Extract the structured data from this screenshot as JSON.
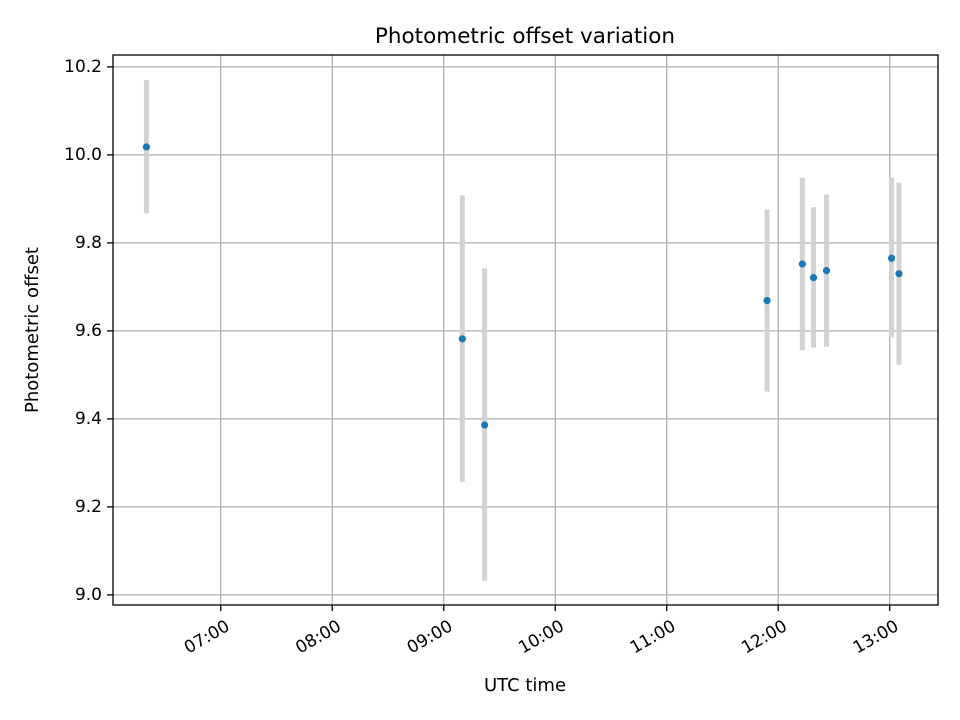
{
  "chart_data": {
    "type": "scatter",
    "title": "Photometric offset variation",
    "xlabel": "UTC time",
    "ylabel": "Photometric offset",
    "x_ticks": [
      "07:00",
      "08:00",
      "09:00",
      "10:00",
      "11:00",
      "12:00",
      "13:00"
    ],
    "y_ticks": [
      "9.0",
      "9.2",
      "9.4",
      "9.6",
      "9.8",
      "10.0",
      "10.2"
    ],
    "xlim": [
      "06:02",
      "13:26"
    ],
    "ylim": [
      8.977,
      10.227
    ],
    "grid": true,
    "marker_color": "#1f77b4",
    "errorbar_color": "#d3d3d3",
    "series": [
      {
        "points": [
          {
            "time": "06:20",
            "y": 10.018,
            "yerr_low": 9.867,
            "yerr_high": 10.17
          },
          {
            "time": "09:10",
            "y": 9.582,
            "yerr_low": 9.257,
            "yerr_high": 9.908
          },
          {
            "time": "09:22",
            "y": 9.386,
            "yerr_low": 9.032,
            "yerr_high": 9.742
          },
          {
            "time": "11:54",
            "y": 9.669,
            "yerr_low": 9.462,
            "yerr_high": 9.876
          },
          {
            "time": "12:13",
            "y": 9.752,
            "yerr_low": 9.556,
            "yerr_high": 9.948
          },
          {
            "time": "12:19",
            "y": 9.721,
            "yerr_low": 9.562,
            "yerr_high": 9.881
          },
          {
            "time": "12:26",
            "y": 9.737,
            "yerr_low": 9.564,
            "yerr_high": 9.91
          },
          {
            "time": "13:01",
            "y": 9.765,
            "yerr_low": 9.585,
            "yerr_high": 9.948
          },
          {
            "time": "13:05",
            "y": 9.73,
            "yerr_low": 9.523,
            "yerr_high": 9.937
          }
        ]
      }
    ]
  }
}
